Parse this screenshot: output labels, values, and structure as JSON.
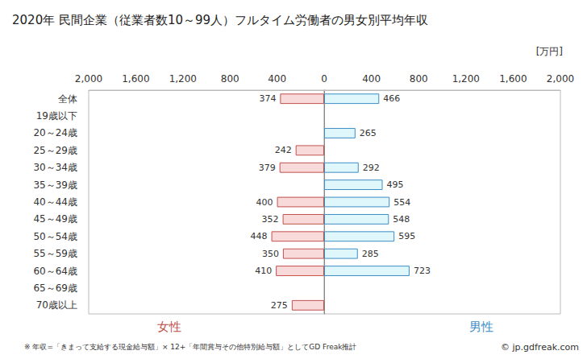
{
  "chart_data": {
    "type": "bar",
    "orientation": "horizontal",
    "title": "2020年 民間企業（従業者数10～99人）フルタイム労働者の男女別平均年収",
    "xlabel": "[万円]",
    "categories": [
      "全体",
      "19歳以下",
      "20～24歳",
      "25～29歳",
      "30～34歳",
      "35～39歳",
      "40～44歳",
      "45～49歳",
      "50～54歳",
      "55～59歳",
      "60～64歳",
      "65～69歳",
      "70歳以上"
    ],
    "series": [
      {
        "name": "女性",
        "color": "#f9dada",
        "values": [
          374,
          null,
          null,
          242,
          379,
          null,
          400,
          352,
          448,
          350,
          410,
          null,
          275
        ]
      },
      {
        "name": "男性",
        "color": "#dff6fb",
        "values": [
          466,
          null,
          265,
          null,
          292,
          495,
          554,
          548,
          595,
          285,
          723,
          null,
          null
        ]
      }
    ],
    "xlim": [
      0,
      2000
    ],
    "xticks": [
      0,
      400,
      800,
      1200,
      1600,
      2000
    ],
    "data_labels": true,
    "grid": false,
    "annotations": [
      "※ 年収=「きまって支給する現金給与額」× 12+「年間賞与その他特別給与額」としてGD Freak推計",
      "© jp.gdfreak.com"
    ]
  }
}
